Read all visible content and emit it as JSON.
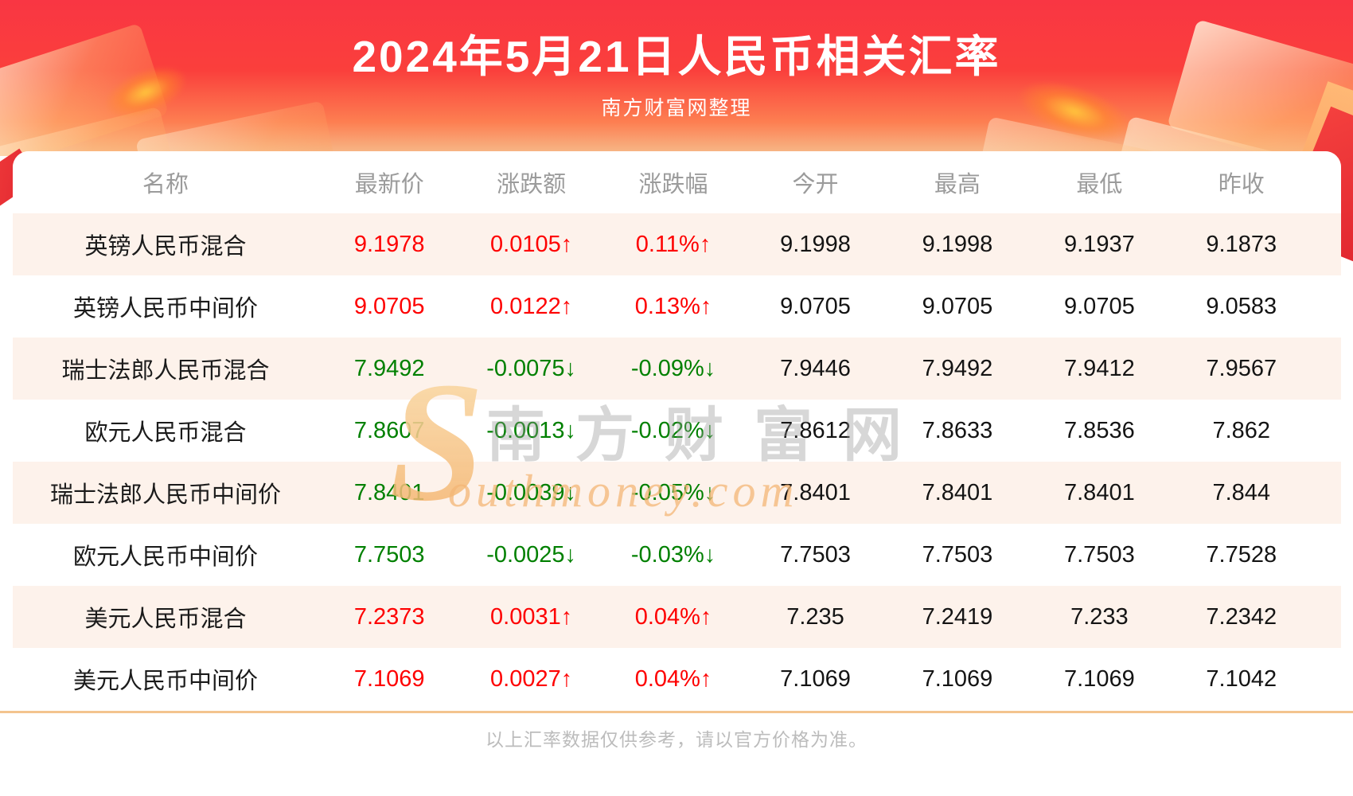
{
  "banner": {
    "title": "2024年5月21日人民币相关汇率",
    "subtitle": "南方财富网整理"
  },
  "table": {
    "headers": [
      "名称",
      "最新价",
      "涨跌额",
      "涨跌幅",
      "今开",
      "最高",
      "最低",
      "昨收"
    ],
    "rows": [
      {
        "name": "英镑人民币混合",
        "latest": "9.1978",
        "change": "0.0105↑",
        "change_pct": "0.11%↑",
        "open": "9.1998",
        "high": "9.1998",
        "low": "9.1937",
        "prev_close": "9.1873",
        "trend": "up"
      },
      {
        "name": "英镑人民币中间价",
        "latest": "9.0705",
        "change": "0.0122↑",
        "change_pct": "0.13%↑",
        "open": "9.0705",
        "high": "9.0705",
        "low": "9.0705",
        "prev_close": "9.0583",
        "trend": "up"
      },
      {
        "name": "瑞士法郎人民币混合",
        "latest": "7.9492",
        "change": "-0.0075↓",
        "change_pct": "-0.09%↓",
        "open": "7.9446",
        "high": "7.9492",
        "low": "7.9412",
        "prev_close": "7.9567",
        "trend": "down"
      },
      {
        "name": "欧元人民币混合",
        "latest": "7.8607",
        "change": "-0.0013↓",
        "change_pct": "-0.02%↓",
        "open": "7.8612",
        "high": "7.8633",
        "low": "7.8536",
        "prev_close": "7.862",
        "trend": "down"
      },
      {
        "name": "瑞士法郎人民币中间价",
        "latest": "7.8401",
        "change": "-0.0039↓",
        "change_pct": "-0.05%↓",
        "open": "7.8401",
        "high": "7.8401",
        "low": "7.8401",
        "prev_close": "7.844",
        "trend": "down"
      },
      {
        "name": "欧元人民币中间价",
        "latest": "7.7503",
        "change": "-0.0025↓",
        "change_pct": "-0.03%↓",
        "open": "7.7503",
        "high": "7.7503",
        "low": "7.7503",
        "prev_close": "7.7528",
        "trend": "down"
      },
      {
        "name": "美元人民币混合",
        "latest": "7.2373",
        "change": "0.0031↑",
        "change_pct": "0.04%↑",
        "open": "7.235",
        "high": "7.2419",
        "low": "7.233",
        "prev_close": "7.2342",
        "trend": "up"
      },
      {
        "name": "美元人民币中间价",
        "latest": "7.1069",
        "change": "0.0027↑",
        "change_pct": "0.04%↑",
        "open": "7.1069",
        "high": "7.1069",
        "low": "7.1069",
        "prev_close": "7.1042",
        "trend": "up"
      }
    ]
  },
  "watermark": {
    "s": "S",
    "cn": "南方财富网",
    "en": "outhmoney.com"
  },
  "footer": {
    "note": "以上汇率数据仅供参考，请以官方价格为准。"
  },
  "colors": {
    "up": "#fe0000",
    "down": "#008000",
    "banner_red": "#fa3f3c",
    "row_alt": "#fdf2eb",
    "divider": "#f3c48e"
  },
  "chart_data": {
    "type": "table",
    "title": "2024年5月21日人民币相关汇率",
    "subtitle": "南方财富网整理",
    "columns": [
      "名称",
      "最新价",
      "涨跌额",
      "涨跌幅",
      "今开",
      "最高",
      "最低",
      "昨收"
    ],
    "rows": [
      [
        "英镑人民币混合",
        9.1978,
        0.0105,
        "0.11%",
        9.1998,
        9.1998,
        9.1937,
        9.1873
      ],
      [
        "英镑人民币中间价",
        9.0705,
        0.0122,
        "0.13%",
        9.0705,
        9.0705,
        9.0705,
        9.0583
      ],
      [
        "瑞士法郎人民币混合",
        7.9492,
        -0.0075,
        "-0.09%",
        7.9446,
        7.9492,
        7.9412,
        7.9567
      ],
      [
        "欧元人民币混合",
        7.8607,
        -0.0013,
        "-0.02%",
        7.8612,
        7.8633,
        7.8536,
        7.862
      ],
      [
        "瑞士法郎人民币中间价",
        7.8401,
        -0.0039,
        "-0.05%",
        7.8401,
        7.8401,
        7.8401,
        7.844
      ],
      [
        "欧元人民币中间价",
        7.7503,
        -0.0025,
        "-0.03%",
        7.7503,
        7.7503,
        7.7503,
        7.7528
      ],
      [
        "美元人民币混合",
        7.2373,
        0.0031,
        "0.04%",
        7.235,
        7.2419,
        7.233,
        7.2342
      ],
      [
        "美元人民币中间价",
        7.1069,
        0.0027,
        "0.04%",
        7.1069,
        7.1069,
        7.1069,
        7.1042
      ]
    ]
  }
}
